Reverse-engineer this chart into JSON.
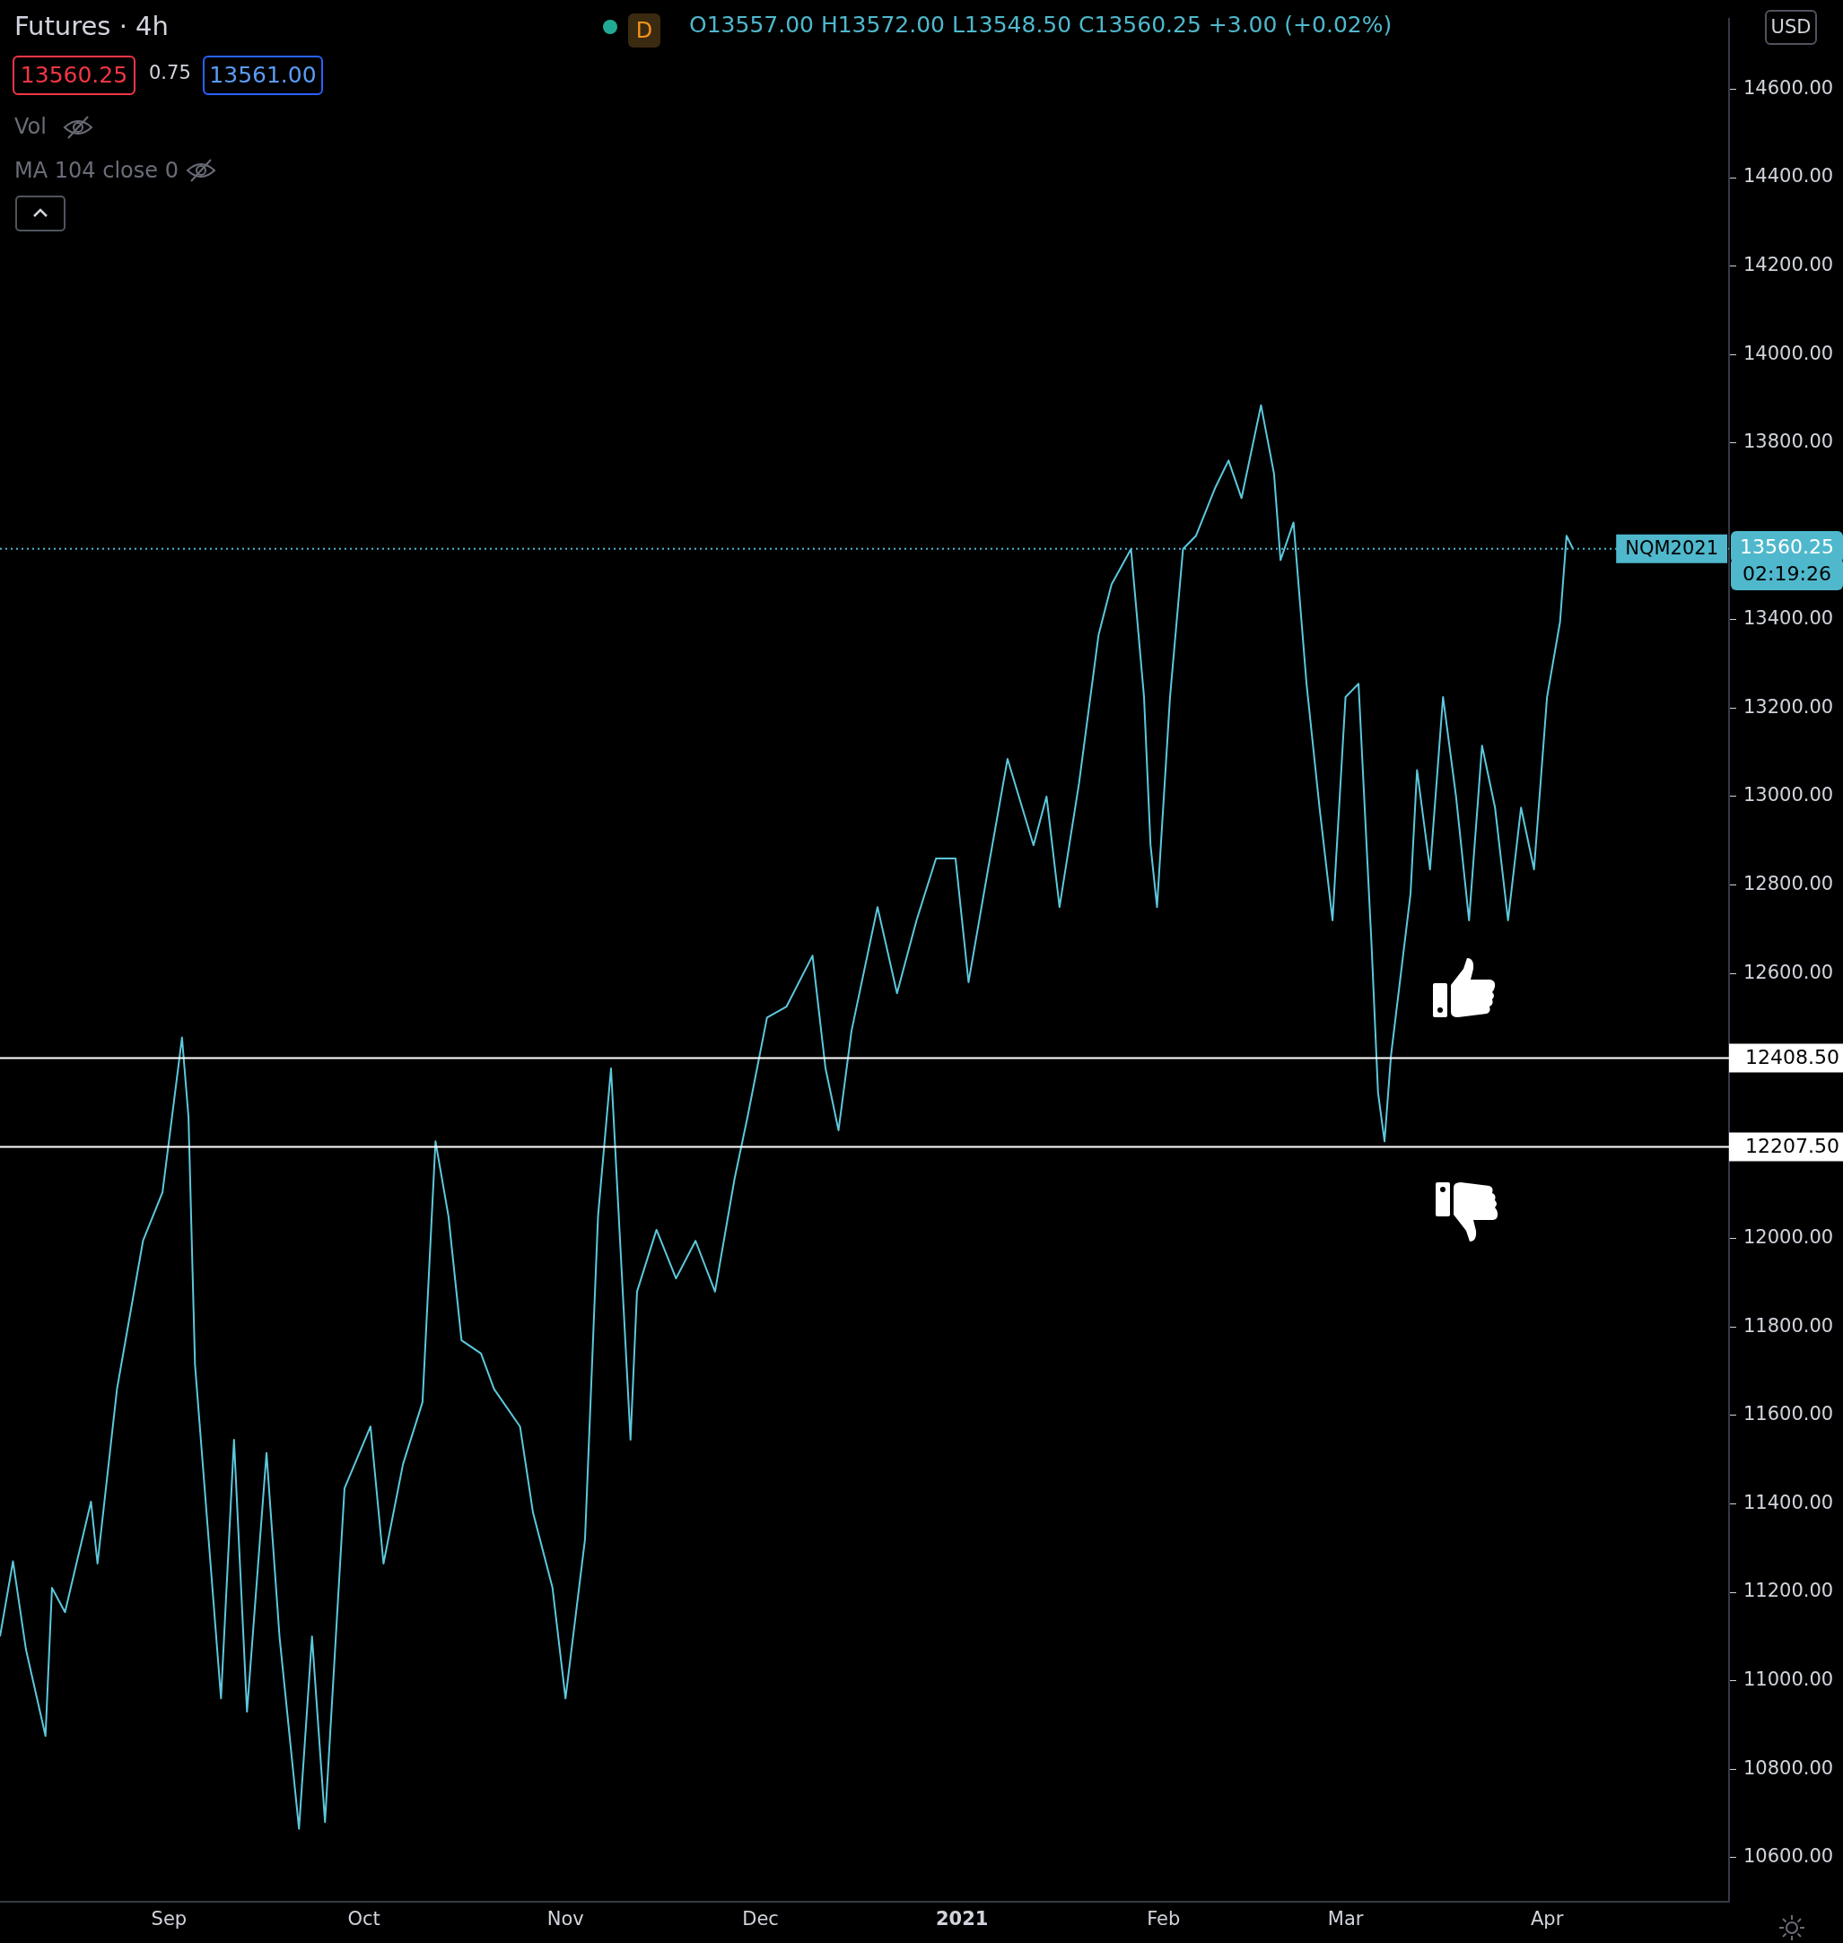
{
  "chart_data": {
    "type": "line",
    "title": "Futures · 4h",
    "color": "#5cc8dc",
    "x": [
      "2020-08-06",
      "2020-08-08",
      "2020-08-10",
      "2020-08-13",
      "2020-08-14",
      "2020-08-16",
      "2020-08-20",
      "2020-08-21",
      "2020-08-24",
      "2020-08-28",
      "2020-08-31",
      "2020-09-03",
      "2020-09-04",
      "2020-09-05",
      "2020-09-09",
      "2020-09-11",
      "2020-09-13",
      "2020-09-16",
      "2020-09-18",
      "2020-09-21",
      "2020-09-23",
      "2020-09-25",
      "2020-09-28",
      "2020-10-02",
      "2020-10-04",
      "2020-10-07",
      "2020-10-10",
      "2020-10-12",
      "2020-10-14",
      "2020-10-16",
      "2020-10-19",
      "2020-10-21",
      "2020-10-25",
      "2020-10-27",
      "2020-10-30",
      "2020-11-01",
      "2020-11-04",
      "2020-11-06",
      "2020-11-08",
      "2020-11-10",
      "2020-11-11",
      "2020-11-12",
      "2020-11-15",
      "2020-11-18",
      "2020-11-21",
      "2020-11-24",
      "2020-11-27",
      "2020-11-29",
      "2020-12-02",
      "2020-12-05",
      "2020-12-09",
      "2020-12-11",
      "2020-12-13",
      "2020-12-15",
      "2020-12-19",
      "2020-12-22",
      "2020-12-25",
      "2020-12-28",
      "2020-12-31",
      "2021-01-02",
      "2021-01-05",
      "2021-01-08",
      "2021-01-12",
      "2021-01-14",
      "2021-01-16",
      "2021-01-19",
      "2021-01-22",
      "2021-01-24",
      "2021-01-27",
      "2021-01-29",
      "2021-01-30",
      "2021-01-31",
      "2021-02-02",
      "2021-02-04",
      "2021-02-06",
      "2021-02-09",
      "2021-02-11",
      "2021-02-13",
      "2021-02-16",
      "2021-02-18",
      "2021-02-19",
      "2021-02-21",
      "2021-02-23",
      "2021-02-25",
      "2021-02-27",
      "2021-03-01",
      "2021-03-03",
      "2021-03-05",
      "2021-03-06",
      "2021-03-07",
      "2021-03-08",
      "2021-03-11",
      "2021-03-12",
      "2021-03-14",
      "2021-03-16",
      "2021-03-18",
      "2021-03-20",
      "2021-03-22",
      "2021-03-24",
      "2021-03-26",
      "2021-03-28",
      "2021-03-30",
      "2021-04-01",
      "2021-04-03",
      "2021-04-04",
      "2021-04-05"
    ],
    "values": [
      11100,
      11270,
      11070,
      10875,
      11210,
      11155,
      11405,
      11265,
      11660,
      11995,
      12105,
      12455,
      12275,
      11715,
      10960,
      11545,
      10930,
      11515,
      11100,
      10665,
      11100,
      10680,
      11435,
      11575,
      11265,
      11490,
      11630,
      12220,
      12050,
      11770,
      11740,
      11660,
      11575,
      11380,
      11210,
      10960,
      11320,
      12050,
      12385,
      11825,
      11545,
      11880,
      12020,
      11910,
      11995,
      11880,
      12135,
      12275,
      12500,
      12525,
      12640,
      12385,
      12245,
      12470,
      12750,
      12555,
      12720,
      12860,
      12860,
      12580,
      12835,
      13085,
      12890,
      13000,
      12750,
      13030,
      13365,
      13480,
      13560,
      13225,
      12890,
      12750,
      13225,
      13560,
      13590,
      13700,
      13760,
      13675,
      13885,
      13730,
      13535,
      13620,
      13255,
      12975,
      12720,
      13225,
      13255,
      12665,
      12330,
      12220,
      12415,
      12780,
      13060,
      12835,
      13225,
      13000,
      12720,
      13115,
      12975,
      12720,
      12975,
      12835,
      13225,
      13395,
      13590,
      13560
    ],
    "xlim": [
      "2020-08-06",
      "2021-04-29"
    ],
    "xticks": [
      {
        "value": "2020-09-01",
        "label": "Sep"
      },
      {
        "value": "2020-10-01",
        "label": "Oct"
      },
      {
        "value": "2020-11-01",
        "label": "Nov"
      },
      {
        "value": "2020-12-01",
        "label": "Dec"
      },
      {
        "value": "2021-01-01",
        "label": "2021"
      },
      {
        "value": "2021-02-01",
        "label": "Feb"
      },
      {
        "value": "2021-03-01",
        "label": "Mar"
      },
      {
        "value": "2021-04-01",
        "label": "Apr"
      }
    ],
    "ylim": [
      10500,
      14760
    ],
    "yticks": [
      {
        "value": 10600,
        "label": "10600.00"
      },
      {
        "value": 10800,
        "label": "10800.00"
      },
      {
        "value": 11000,
        "label": "11000.00"
      },
      {
        "value": 11200,
        "label": "11200.00"
      },
      {
        "value": 11400,
        "label": "11400.00"
      },
      {
        "value": 11600,
        "label": "11600.00"
      },
      {
        "value": 11800,
        "label": "11800.00"
      },
      {
        "value": 12000,
        "label": "12000.00"
      },
      {
        "value": 12200,
        "label": null
      },
      {
        "value": 12400,
        "label": null
      },
      {
        "value": 12600,
        "label": "12600.00"
      },
      {
        "value": 12800,
        "label": "12800.00"
      },
      {
        "value": 13000,
        "label": "13000.00"
      },
      {
        "value": 13200,
        "label": "13200.00"
      },
      {
        "value": 13400,
        "label": "13400.00"
      },
      {
        "value": 13800,
        "label": "13800.00"
      },
      {
        "value": 14000,
        "label": "14000.00"
      },
      {
        "value": 14200,
        "label": "14200.00"
      },
      {
        "value": 14400,
        "label": "14400.00"
      },
      {
        "value": 14600,
        "label": "14600.00"
      }
    ],
    "ref_lines": [
      {
        "axis": "y",
        "value": 12408.5,
        "label": "12408.50",
        "color": "#ffffff",
        "line_style": "solid"
      },
      {
        "axis": "y",
        "value": 12207.5,
        "label": "12207.50",
        "color": "#ffffff",
        "line_style": "solid"
      },
      {
        "axis": "y",
        "value": 13560.25,
        "label": "NQM2021",
        "color": "#4fb8cc",
        "line_style": "dotted"
      }
    ],
    "annotations": [
      "O13557.00 H13572.00 L13548.50 C13560.25 +3.00 (+0.02%)",
      "D",
      "13560.25",
      "0.75",
      "13561.00",
      "Vol",
      "MA 104 close 0",
      "USD",
      "02:19:26",
      "13560.25"
    ],
    "grid": false,
    "legend": false
  }
}
